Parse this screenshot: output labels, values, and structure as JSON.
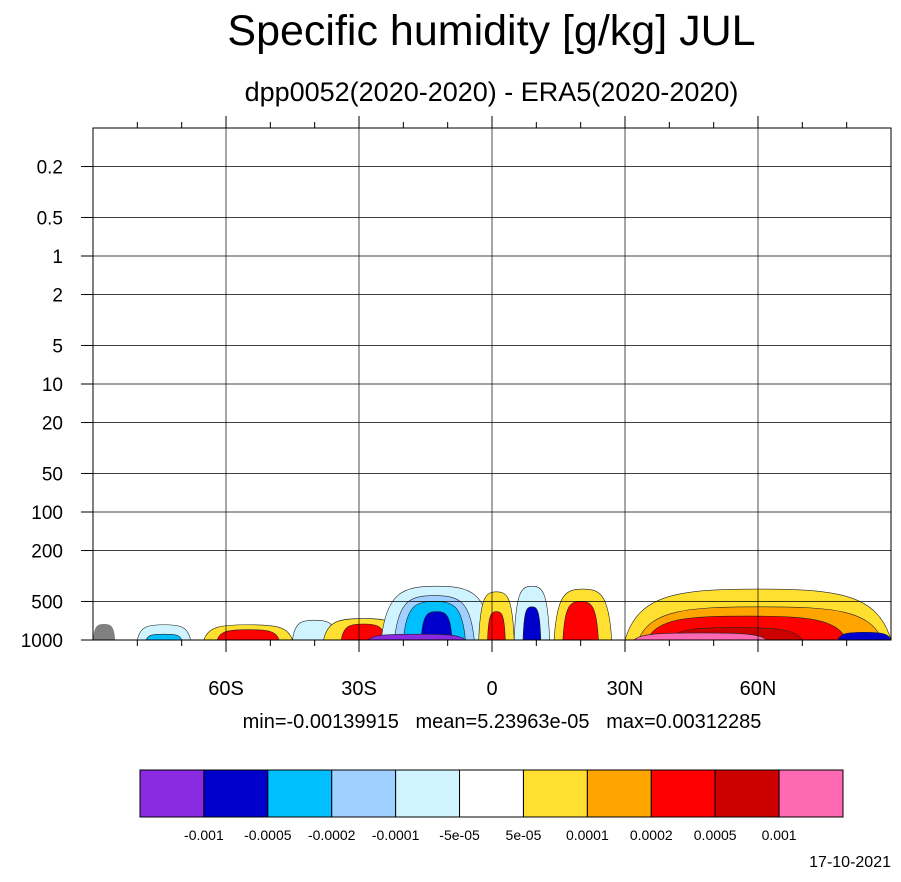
{
  "title": "Specific humidity [g/kg] JUL",
  "subtitle": "dpp0052(2020-2020) - ERA5(2020-2020)",
  "stats": {
    "min": "min=-0.00139915",
    "mean": "mean=5.23963e-05",
    "max": "max=0.00312285"
  },
  "date": "17-10-2021",
  "chart_data": {
    "type": "heatmap",
    "title": "Specific humidity [g/kg] JUL",
    "subtitle": "dpp0052(2020-2020) - ERA5(2020-2020)",
    "x_axis": {
      "range": [
        -90,
        90
      ],
      "ticks": [
        -60,
        -30,
        0,
        30,
        60
      ],
      "tick_labels": [
        "60S",
        "30S",
        "0",
        "30N",
        "60N"
      ],
      "minor_ticks": [
        -80,
        -70,
        -50,
        -40,
        -20,
        -10,
        10,
        20,
        40,
        50,
        70,
        80
      ]
    },
    "y_axis": {
      "scale": "log",
      "reversed": true,
      "range": [
        1000,
        0.1
      ],
      "ticks": [
        0.2,
        0.5,
        1,
        2,
        5,
        10,
        20,
        50,
        100,
        200,
        500,
        1000
      ],
      "tick_labels": [
        "0.2",
        "0.5",
        "1",
        "2",
        "5",
        "10",
        "20",
        "50",
        "100",
        "200",
        "500",
        "1000"
      ]
    },
    "grid": true,
    "colorbar": {
      "colors": [
        "#8a2be2",
        "#0000cd",
        "#00bfff",
        "#a0d0ff",
        "#d0f4ff",
        "#ffffff",
        "#ffe030",
        "#ffa500",
        "#ff0000",
        "#cd0000",
        "#ff69b4"
      ],
      "levels": [
        "-0.001",
        "-0.0005",
        "-0.0002",
        "-0.0001",
        "-5e-05",
        "5e-05",
        "0.0001",
        "0.0002",
        "0.0005",
        "0.001"
      ],
      "placement": "bottom"
    },
    "field_regions": [
      {
        "lon": [
          -90,
          -85
        ],
        "p_top": 750,
        "level": "missing"
      },
      {
        "lon": [
          -80,
          -68
        ],
        "p_top": 760,
        "level": 4
      },
      {
        "lon": [
          -78,
          -70
        ],
        "p_top": 900,
        "level": 2
      },
      {
        "lon": [
          -65,
          -45
        ],
        "p_top": 760,
        "level": 6
      },
      {
        "lon": [
          -62,
          -48
        ],
        "p_top": 830,
        "level": 8
      },
      {
        "lon": [
          -45,
          -35
        ],
        "p_top": 700,
        "level": 4
      },
      {
        "lon": [
          -38,
          -20
        ],
        "p_top": 680,
        "level": 6
      },
      {
        "lon": [
          -34,
          -24
        ],
        "p_top": 750,
        "level": 8
      },
      {
        "lon": [
          -25,
          0
        ],
        "p_top": 380,
        "level": 4
      },
      {
        "lon": [
          -22,
          -4
        ],
        "p_top": 450,
        "level": 3
      },
      {
        "lon": [
          -20,
          -6
        ],
        "p_top": 500,
        "level": 2
      },
      {
        "lon": [
          -16,
          -9
        ],
        "p_top": 600,
        "level": 1
      },
      {
        "lon": [
          -28,
          -6
        ],
        "p_top": 900,
        "level": 0
      },
      {
        "lon": [
          -3,
          5
        ],
        "p_top": 420,
        "level": 6
      },
      {
        "lon": [
          -1,
          3
        ],
        "p_top": 600,
        "level": 8
      },
      {
        "lon": [
          5,
          13
        ],
        "p_top": 380,
        "level": 4
      },
      {
        "lon": [
          7,
          11
        ],
        "p_top": 550,
        "level": 1
      },
      {
        "lon": [
          14,
          27
        ],
        "p_top": 400,
        "level": 6
      },
      {
        "lon": [
          16,
          24
        ],
        "p_top": 500,
        "level": 8
      },
      {
        "lon": [
          30,
          90
        ],
        "p_top": 400,
        "level": 6
      },
      {
        "lon": [
          33,
          88
        ],
        "p_top": 550,
        "level": 7
      },
      {
        "lon": [
          35,
          80
        ],
        "p_top": 650,
        "level": 8
      },
      {
        "lon": [
          40,
          70
        ],
        "p_top": 800,
        "level": 9
      },
      {
        "lon": [
          32,
          62
        ],
        "p_top": 880,
        "level": 10
      },
      {
        "lon": [
          78,
          90
        ],
        "p_top": 870,
        "level": 1
      }
    ]
  }
}
